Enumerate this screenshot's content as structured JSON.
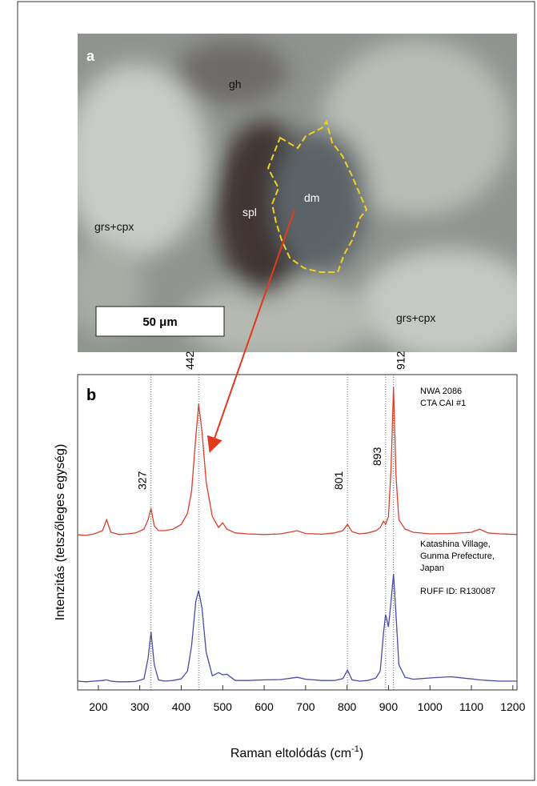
{
  "photo": {
    "panel": "a",
    "labels": [
      "gh",
      "spl",
      "dm",
      "grs+cpx",
      "grs+cpx"
    ],
    "scale": "50 μm"
  },
  "chart_data": {
    "type": "line",
    "panel": "b",
    "xlabel": [
      "Raman eltolódás (cm",
      "-1",
      ")"
    ],
    "ylabel": "Intenzitás (tetszőleges egység)",
    "xlim": [
      150,
      1210
    ],
    "xticks": [
      200,
      300,
      400,
      500,
      600,
      700,
      800,
      900,
      1000,
      1100,
      1200
    ],
    "ylim": [
      0,
      100
    ],
    "peaks": [
      327,
      442,
      801,
      893,
      912
    ],
    "x": [
      150,
      170,
      190,
      210,
      220,
      230,
      250,
      270,
      290,
      310,
      320,
      327,
      335,
      345,
      360,
      380,
      400,
      415,
      425,
      435,
      442,
      450,
      460,
      475,
      490,
      500,
      510,
      530,
      560,
      600,
      640,
      680,
      700,
      740,
      770,
      790,
      801,
      812,
      830,
      850,
      870,
      880,
      888,
      893,
      900,
      906,
      912,
      918,
      925,
      940,
      960,
      1000,
      1050,
      1100,
      1120,
      1140,
      1170,
      1210
    ],
    "series": [
      {
        "name": [
          "NWA 2086",
          "CTA CAI #1"
        ],
        "color": "#d9402a",
        "values": [
          49.2,
          49.0,
          49.5,
          50.5,
          54,
          50,
          49.3,
          49.5,
          49.8,
          51,
          54,
          57.6,
          52,
          50.5,
          50.5,
          51,
          52.5,
          56,
          63,
          80,
          90.6,
          82,
          66,
          55,
          51.5,
          53,
          51,
          49.8,
          49.5,
          49.3,
          49.5,
          50.5,
          49.6,
          49.4,
          49.8,
          50.5,
          52.5,
          50.2,
          49.5,
          49.8,
          50.5,
          51.5,
          53.5,
          52.5,
          55,
          70,
          96,
          68,
          54,
          51,
          50,
          49.5,
          49.6,
          50,
          51,
          49.8,
          49.5,
          49.3
        ]
      },
      {
        "name": [
          "Katashina Village,",
          "Gunma Prefecture,",
          "Japan",
          "RUFF ID: R130087"
        ],
        "color": "#4a4aa8",
        "values": [
          2.8,
          2.6,
          2.8,
          3,
          3.2,
          2.8,
          2.6,
          2.6,
          2.7,
          3.5,
          10,
          18.3,
          8,
          3.2,
          2.8,
          3,
          3.5,
          6,
          14,
          28,
          31.5,
          26,
          12,
          4.5,
          5.5,
          4.8,
          5,
          3,
          3,
          3.2,
          3.3,
          4,
          3.4,
          3,
          3,
          3.6,
          6.3,
          3.2,
          2.8,
          3,
          3.8,
          6,
          18,
          23.9,
          20,
          28,
          36.8,
          24,
          8,
          4,
          3.4,
          3.8,
          4.2,
          3.5,
          3.2,
          3,
          2.8,
          2.8
        ]
      }
    ]
  }
}
